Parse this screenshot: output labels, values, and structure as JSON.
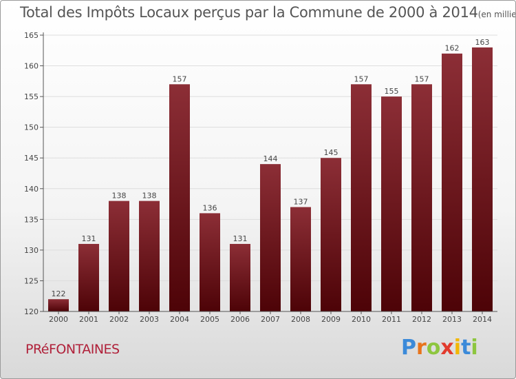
{
  "title": "Total des Impôts Locaux perçus par la Commune de 2000 à 2014",
  "unit_label": "(en milliers d'€)",
  "commune": "PRéFONTAINES",
  "brand": {
    "letters": [
      "P",
      "r",
      "o",
      "x",
      "i",
      "t",
      "i"
    ],
    "colors": [
      "#3b8ad9",
      "#e8741c",
      "#8dc63f",
      "#e23b2e",
      "#f2b705",
      "#3b8ad9",
      "#8dc63f"
    ]
  },
  "colors": {
    "bar_top": "#8c2e36",
    "bar_bottom": "#4d0307",
    "axis": "#555555",
    "grid": "#dddddd"
  },
  "chart_data": {
    "type": "bar",
    "title": "Total des Impôts Locaux perçus par la Commune de 2000 à 2014",
    "xlabel": "",
    "ylabel": "",
    "categories": [
      "2000",
      "2001",
      "2002",
      "2003",
      "2004",
      "2005",
      "2006",
      "2007",
      "2008",
      "2009",
      "2010",
      "2011",
      "2012",
      "2013",
      "2014"
    ],
    "values": [
      122,
      131,
      138,
      138,
      157,
      136,
      131,
      144,
      137,
      145,
      157,
      155,
      157,
      162,
      163
    ],
    "ylim": [
      120,
      165
    ],
    "yticks": [
      120,
      125,
      130,
      135,
      140,
      145,
      150,
      155,
      160,
      165
    ]
  }
}
